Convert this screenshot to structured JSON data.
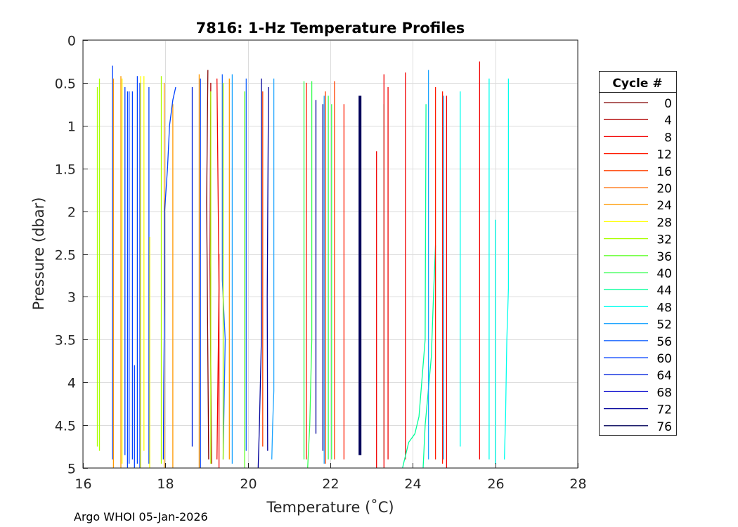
{
  "chart_data": {
    "type": "line",
    "title": "7816: 1-Hz Temperature Profiles",
    "xlabel": "Temperature (˚C)",
    "ylabel": "Pressure (dbar)",
    "xlim": [
      16,
      28
    ],
    "ylim": [
      0,
      5
    ],
    "y_reversed": true,
    "grid": true,
    "xticks": [
      "16",
      "18",
      "20",
      "22",
      "24",
      "26",
      "28"
    ],
    "yticks": [
      "0",
      "0.5",
      "1",
      "1.5",
      "2",
      "2.5",
      "3",
      "3.5",
      "4",
      "4.5",
      "5"
    ],
    "legend": {
      "title": "Cycle #",
      "placement": "outside-right",
      "entries": [
        {
          "label": "0",
          "color": "#800000"
        },
        {
          "label": "4",
          "color": "#b00000"
        },
        {
          "label": "8",
          "color": "#f20000"
        },
        {
          "label": "12",
          "color": "#ff1a00"
        },
        {
          "label": "16",
          "color": "#ff4000"
        },
        {
          "label": "20",
          "color": "#ff6a00"
        },
        {
          "label": "24",
          "color": "#ff9900"
        },
        {
          "label": "28",
          "color": "#ffff00"
        },
        {
          "label": "32",
          "color": "#aaff00"
        },
        {
          "label": "36",
          "color": "#66ff33"
        },
        {
          "label": "40",
          "color": "#33ff4d"
        },
        {
          "label": "44",
          "color": "#00ff99"
        },
        {
          "label": "48",
          "color": "#00ffee"
        },
        {
          "label": "52",
          "color": "#1aa3ff"
        },
        {
          "label": "56",
          "color": "#1a66ff"
        },
        {
          "label": "60",
          "color": "#0040ff"
        },
        {
          "label": "64",
          "color": "#0022dd"
        },
        {
          "label": "68",
          "color": "#0000cc"
        },
        {
          "label": "72",
          "color": "#00009a"
        },
        {
          "label": "76",
          "color": "#00005a"
        }
      ]
    },
    "profiles": [
      {
        "cycle": 32,
        "points": [
          [
            16.35,
            0.55
          ],
          [
            16.35,
            4.75
          ]
        ]
      },
      {
        "cycle": 32,
        "points": [
          [
            16.4,
            0.45
          ],
          [
            16.4,
            4.8
          ]
        ]
      },
      {
        "cycle": 60,
        "points": [
          [
            16.72,
            0.3
          ],
          [
            16.72,
            4.9
          ]
        ]
      },
      {
        "cycle": 24,
        "points": [
          [
            16.74,
            0.45
          ],
          [
            16.74,
            5.0
          ]
        ]
      },
      {
        "cycle": 24,
        "points": [
          [
            16.92,
            0.42
          ],
          [
            16.92,
            5.0
          ]
        ]
      },
      {
        "cycle": 28,
        "points": [
          [
            16.95,
            0.45
          ],
          [
            16.95,
            4.95
          ]
        ]
      },
      {
        "cycle": 60,
        "points": [
          [
            17.02,
            0.55
          ],
          [
            17.02,
            4.85
          ]
        ]
      },
      {
        "cycle": 60,
        "points": [
          [
            17.08,
            0.6
          ],
          [
            17.08,
            5.0
          ]
        ]
      },
      {
        "cycle": 60,
        "points": [
          [
            17.12,
            0.6
          ],
          [
            17.12,
            4.95
          ]
        ]
      },
      {
        "cycle": 60,
        "points": [
          [
            17.2,
            0.6
          ],
          [
            17.2,
            4.9
          ]
        ]
      },
      {
        "cycle": 60,
        "points": [
          [
            17.25,
            3.8
          ],
          [
            17.25,
            5.0
          ]
        ]
      },
      {
        "cycle": 60,
        "points": [
          [
            17.32,
            0.42
          ],
          [
            17.32,
            4.95
          ]
        ]
      },
      {
        "cycle": 60,
        "points": [
          [
            17.38,
            0.5
          ],
          [
            17.38,
            5.0
          ]
        ]
      },
      {
        "cycle": 28,
        "points": [
          [
            17.4,
            0.42
          ],
          [
            17.4,
            5.0
          ]
        ]
      },
      {
        "cycle": 28,
        "points": [
          [
            17.48,
            0.42
          ],
          [
            17.48,
            4.8
          ]
        ]
      },
      {
        "cycle": 60,
        "points": [
          [
            17.6,
            0.55
          ],
          [
            17.6,
            4.95
          ]
        ]
      },
      {
        "cycle": 28,
        "points": [
          [
            17.62,
            2.3
          ],
          [
            17.62,
            5.0
          ]
        ]
      },
      {
        "cycle": 32,
        "points": [
          [
            17.9,
            0.42
          ],
          [
            17.9,
            4.95
          ]
        ]
      },
      {
        "cycle": 24,
        "points": [
          [
            17.97,
            0.5
          ],
          [
            17.97,
            5.0
          ]
        ]
      },
      {
        "cycle": 24,
        "points": [
          [
            18.18,
            0.75
          ],
          [
            18.18,
            5.0
          ]
        ]
      },
      {
        "cycle": 60,
        "points": [
          [
            18.25,
            0.55
          ],
          [
            18.18,
            0.7
          ],
          [
            18.1,
            1.0
          ],
          [
            18.05,
            1.5
          ],
          [
            17.98,
            2.0
          ],
          [
            17.98,
            3.0
          ],
          [
            17.96,
            4.0
          ],
          [
            17.95,
            4.9
          ]
        ]
      },
      {
        "cycle": 64,
        "points": [
          [
            18.65,
            0.55
          ],
          [
            18.65,
            4.75
          ]
        ]
      },
      {
        "cycle": 24,
        "points": [
          [
            18.82,
            0.4
          ],
          [
            18.82,
            5.0
          ]
        ]
      },
      {
        "cycle": 60,
        "points": [
          [
            18.85,
            0.45
          ],
          [
            18.85,
            5.0
          ]
        ]
      },
      {
        "cycle": 0,
        "points": [
          [
            19.03,
            0.35
          ],
          [
            19.0,
            1.9
          ],
          [
            19.05,
            4.9
          ]
        ]
      },
      {
        "cycle": 4,
        "points": [
          [
            19.1,
            0.5
          ],
          [
            19.08,
            2.6
          ],
          [
            19.12,
            4.95
          ]
        ]
      },
      {
        "cycle": 8,
        "points": [
          [
            19.25,
            0.45
          ],
          [
            19.3,
            2.9
          ],
          [
            19.25,
            4.9
          ]
        ]
      },
      {
        "cycle": 8,
        "points": [
          [
            19.3,
            2.5
          ],
          [
            19.3,
            5.0
          ]
        ]
      },
      {
        "cycle": 56,
        "points": [
          [
            19.38,
            0.4
          ],
          [
            19.38,
            2.8
          ],
          [
            19.45,
            3.5
          ],
          [
            19.4,
            4.9
          ]
        ]
      },
      {
        "cycle": 32,
        "points": [
          [
            19.4,
            0.5
          ],
          [
            19.4,
            4.9
          ]
        ]
      },
      {
        "cycle": 32,
        "points": [
          [
            19.1,
            0.6
          ],
          [
            19.1,
            4.95
          ]
        ]
      },
      {
        "cycle": 24,
        "points": [
          [
            19.55,
            0.45
          ],
          [
            19.55,
            4.9
          ]
        ]
      },
      {
        "cycle": 52,
        "points": [
          [
            19.62,
            0.4
          ],
          [
            19.62,
            4.95
          ]
        ]
      },
      {
        "cycle": 36,
        "points": [
          [
            19.92,
            0.6
          ],
          [
            19.92,
            5.0
          ]
        ]
      },
      {
        "cycle": 56,
        "points": [
          [
            19.96,
            0.45
          ],
          [
            19.96,
            4.8
          ]
        ]
      },
      {
        "cycle": 72,
        "points": [
          [
            20.33,
            0.45
          ],
          [
            20.33,
            3.45
          ],
          [
            20.28,
            4.5
          ],
          [
            20.25,
            5.0
          ]
        ]
      },
      {
        "cycle": 16,
        "points": [
          [
            20.36,
            0.6
          ],
          [
            20.36,
            4.75
          ]
        ]
      },
      {
        "cycle": 72,
        "points": [
          [
            20.5,
            0.55
          ],
          [
            20.47,
            3.0
          ],
          [
            20.48,
            4.8
          ]
        ]
      },
      {
        "cycle": 52,
        "points": [
          [
            20.63,
            0.45
          ],
          [
            20.63,
            4.1
          ],
          [
            20.6,
            4.5
          ],
          [
            20.58,
            4.9
          ]
        ]
      },
      {
        "cycle": 40,
        "points": [
          [
            21.36,
            0.48
          ],
          [
            21.36,
            4.9
          ]
        ]
      },
      {
        "cycle": 12,
        "points": [
          [
            21.42,
            0.5
          ],
          [
            21.42,
            4.9
          ]
        ]
      },
      {
        "cycle": 40,
        "points": [
          [
            21.55,
            0.48
          ],
          [
            21.55,
            3.5
          ],
          [
            21.5,
            4.5
          ],
          [
            21.45,
            5.0
          ]
        ]
      },
      {
        "cycle": 72,
        "points": [
          [
            21.65,
            0.7
          ],
          [
            21.65,
            4.6
          ]
        ]
      },
      {
        "cycle": 72,
        "points": [
          [
            21.82,
            0.75
          ],
          [
            21.82,
            4.8
          ]
        ]
      },
      {
        "cycle": 52,
        "points": [
          [
            21.85,
            0.65
          ],
          [
            21.85,
            4.95
          ]
        ]
      },
      {
        "cycle": 16,
        "points": [
          [
            21.88,
            0.6
          ],
          [
            21.88,
            4.95
          ]
        ]
      },
      {
        "cycle": 40,
        "points": [
          [
            21.95,
            0.65
          ],
          [
            21.95,
            4.9
          ]
        ]
      },
      {
        "cycle": 40,
        "points": [
          [
            22.03,
            0.75
          ],
          [
            22.03,
            4.9
          ]
        ]
      },
      {
        "cycle": 16,
        "points": [
          [
            22.1,
            0.48
          ],
          [
            22.1,
            4.9
          ]
        ]
      },
      {
        "cycle": 12,
        "points": [
          [
            22.33,
            0.75
          ],
          [
            22.33,
            4.9
          ]
        ]
      },
      {
        "cycle": 76,
        "points": [
          [
            22.72,
            0.65
          ],
          [
            22.72,
            4.85
          ]
        ]
      },
      {
        "cycle": 8,
        "points": [
          [
            23.12,
            1.3
          ],
          [
            23.12,
            5.0
          ]
        ]
      },
      {
        "cycle": 44,
        "points": [
          [
            23.3,
            0.75
          ],
          [
            23.3,
            4.9
          ]
        ]
      },
      {
        "cycle": 8,
        "points": [
          [
            23.3,
            0.4
          ],
          [
            23.3,
            5.0
          ]
        ]
      },
      {
        "cycle": 8,
        "points": [
          [
            23.4,
            0.55
          ],
          [
            23.4,
            4.9
          ]
        ]
      },
      {
        "cycle": 8,
        "points": [
          [
            23.82,
            0.38
          ],
          [
            23.82,
            4.9
          ]
        ]
      },
      {
        "cycle": 44,
        "points": [
          [
            24.32,
            0.75
          ],
          [
            24.3,
            3.5
          ],
          [
            24.15,
            4.4
          ],
          [
            24.05,
            4.6
          ],
          [
            23.9,
            4.7
          ],
          [
            23.8,
            4.9
          ],
          [
            23.75,
            5.0
          ]
        ]
      },
      {
        "cycle": 44,
        "points": [
          [
            24.55,
            2.4
          ],
          [
            24.5,
            3.0
          ],
          [
            24.45,
            3.7
          ],
          [
            24.3,
            4.5
          ],
          [
            24.25,
            5.0
          ]
        ]
      },
      {
        "cycle": 52,
        "points": [
          [
            24.38,
            0.35
          ],
          [
            24.38,
            4.9
          ]
        ]
      },
      {
        "cycle": 12,
        "points": [
          [
            24.55,
            0.55
          ],
          [
            24.55,
            4.9
          ]
        ]
      },
      {
        "cycle": 12,
        "points": [
          [
            24.72,
            0.6
          ],
          [
            24.72,
            4.95
          ]
        ]
      },
      {
        "cycle": 52,
        "points": [
          [
            24.75,
            0.65
          ],
          [
            24.75,
            4.9
          ]
        ]
      },
      {
        "cycle": 8,
        "points": [
          [
            24.82,
            0.65
          ],
          [
            24.82,
            5.0
          ]
        ]
      },
      {
        "cycle": 48,
        "points": [
          [
            25.15,
            0.6
          ],
          [
            25.15,
            4.75
          ]
        ]
      },
      {
        "cycle": 8,
        "points": [
          [
            25.62,
            0.25
          ],
          [
            25.62,
            4.9
          ]
        ]
      },
      {
        "cycle": 48,
        "points": [
          [
            25.85,
            0.45
          ],
          [
            25.85,
            4.9
          ]
        ]
      },
      {
        "cycle": 48,
        "points": [
          [
            26.0,
            2.1
          ],
          [
            26.0,
            4.95
          ]
        ]
      },
      {
        "cycle": 48,
        "points": [
          [
            26.32,
            0.45
          ],
          [
            26.32,
            2.9
          ],
          [
            26.28,
            3.5
          ],
          [
            26.25,
            4.4
          ],
          [
            26.22,
            4.9
          ]
        ]
      }
    ]
  },
  "footer": "Argo WHOI 05-Jan-2026"
}
